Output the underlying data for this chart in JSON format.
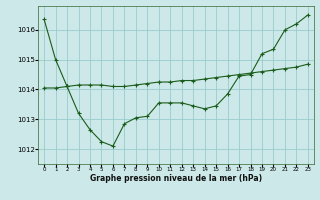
{
  "background_color": "#cce8e8",
  "grid_color": "#99cccc",
  "line_color": "#1a5c1a",
  "title": "Graphe pression niveau de la mer (hPa)",
  "xlim": [
    -0.5,
    23.5
  ],
  "ylim": [
    1011.5,
    1016.8
  ],
  "yticks": [
    1012,
    1013,
    1014,
    1015,
    1016
  ],
  "xticks": [
    0,
    1,
    2,
    3,
    4,
    5,
    6,
    7,
    8,
    9,
    10,
    11,
    12,
    13,
    14,
    15,
    16,
    17,
    18,
    19,
    20,
    21,
    22,
    23
  ],
  "series1_x": [
    0,
    1,
    2
  ],
  "series1_y": [
    1016.35,
    1015.0,
    1014.1
  ],
  "series2_x": [
    2,
    3,
    4,
    5,
    6,
    7,
    8,
    9,
    10,
    11,
    12,
    13,
    14,
    15,
    16,
    17,
    18,
    19,
    20,
    21,
    22,
    23
  ],
  "series2_y": [
    1014.1,
    1013.2,
    1012.65,
    1012.25,
    1012.1,
    1012.85,
    1013.05,
    1013.1,
    1013.55,
    1013.55,
    1013.55,
    1013.45,
    1013.35,
    1013.45,
    1013.85,
    1014.45,
    1014.5,
    1015.2,
    1015.35,
    1016.0,
    1016.2,
    1016.5
  ],
  "series3_x": [
    0,
    1,
    2,
    3,
    4,
    5,
    6,
    7,
    8,
    9,
    10,
    11,
    12,
    13,
    14,
    15,
    16,
    17,
    18,
    19,
    20,
    21,
    22,
    23
  ],
  "series3_y": [
    1014.05,
    1014.05,
    1014.1,
    1014.15,
    1014.15,
    1014.15,
    1014.1,
    1014.1,
    1014.15,
    1014.2,
    1014.25,
    1014.25,
    1014.3,
    1014.3,
    1014.35,
    1014.4,
    1014.45,
    1014.5,
    1014.55,
    1014.6,
    1014.65,
    1014.7,
    1014.75,
    1014.85
  ]
}
